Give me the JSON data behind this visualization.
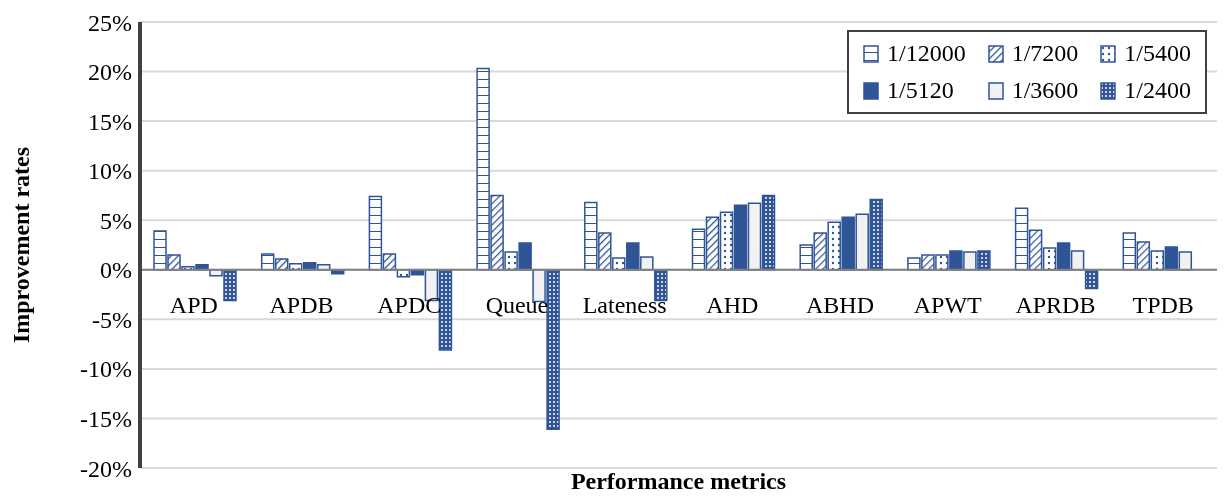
{
  "chart_data": {
    "type": "bar",
    "xlabel": "Performance metrics",
    "ylabel": "Improvement rates",
    "categories": [
      "APD",
      "APDB",
      "APDC",
      "Queue",
      "Lateness",
      "AHD",
      "ABHD",
      "APWT",
      "APRDB",
      "TPDB"
    ],
    "series": [
      {
        "name": "1/12000",
        "color": "#2f5597",
        "values": [
          3.9,
          1.6,
          7.4,
          20.3,
          6.8,
          4.1,
          2.5,
          1.2,
          6.2,
          3.7
        ]
      },
      {
        "name": "1/7200",
        "color": "#2f5597",
        "values": [
          1.5,
          1.1,
          1.6,
          7.5,
          3.7,
          5.3,
          3.7,
          1.5,
          4.0,
          2.8
        ]
      },
      {
        "name": "1/5400",
        "color": "#2f5597",
        "values": [
          0.3,
          0.6,
          -0.7,
          1.8,
          1.2,
          5.8,
          4.8,
          1.5,
          2.2,
          1.9
        ]
      },
      {
        "name": "1/5120",
        "color": "#2f5597",
        "values": [
          0.5,
          0.7,
          -0.5,
          2.7,
          2.7,
          6.5,
          5.3,
          1.9,
          2.7,
          2.3
        ]
      },
      {
        "name": "1/3600",
        "color": "#2f5597",
        "values": [
          -0.6,
          0.5,
          -3.1,
          -3.2,
          1.3,
          6.7,
          5.6,
          1.8,
          1.9,
          1.8
        ]
      },
      {
        "name": "1/2400",
        "color": "#2f5597",
        "values": [
          -3.1,
          -0.4,
          -8.1,
          -16.1,
          -3.1,
          7.5,
          7.1,
          1.9,
          -1.9,
          0
        ]
      }
    ],
    "ylim": [
      -20,
      25
    ],
    "yticks": [
      {
        "value": -20,
        "label": "-20%"
      },
      {
        "value": -15,
        "label": "-15%"
      },
      {
        "value": -10,
        "label": "-10%"
      },
      {
        "value": -5,
        "label": "-5%"
      },
      {
        "value": 0,
        "label": "0%"
      },
      {
        "value": 5,
        "label": "5%"
      },
      {
        "value": 10,
        "label": "10%"
      },
      {
        "value": 15,
        "label": "15%"
      },
      {
        "value": 20,
        "label": "20%"
      },
      {
        "value": 25,
        "label": "25%"
      }
    ],
    "grid": "y",
    "legend": "top right"
  }
}
